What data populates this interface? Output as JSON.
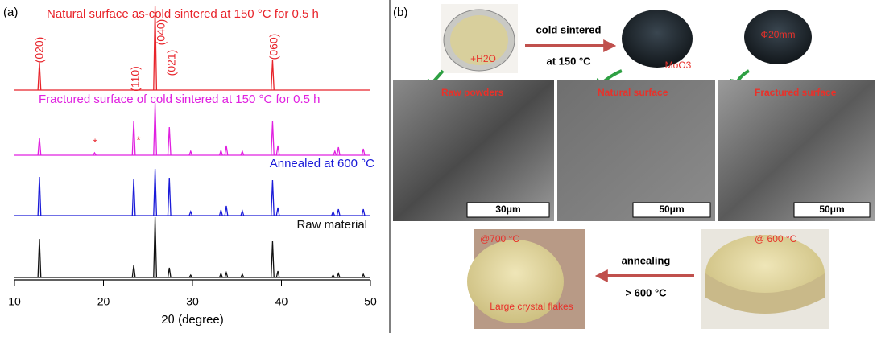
{
  "chart_data": {
    "type": "line",
    "panel_label": "(a)",
    "xlabel": "2θ (degree)",
    "xlim": [
      10,
      50
    ],
    "xticks": [
      10,
      20,
      30,
      40,
      50
    ],
    "series": [
      {
        "name": "Natural surface as-cold sintered at 150 °C for 0.5 h",
        "color": "#e8232a",
        "x": [
          12.8,
          25.8,
          39.0
        ],
        "values": [
          33,
          100,
          36
        ]
      },
      {
        "name": "Fractured surface of cold sintered at 150 °C for 0.5 h",
        "color": "#e020e0",
        "x": [
          12.8,
          19.0,
          23.4,
          25.8,
          27.4,
          29.8,
          33.2,
          33.8,
          35.6,
          39.0,
          39.6,
          46.0,
          46.4,
          49.2
        ],
        "values": [
          22,
          3,
          42,
          65,
          35,
          5,
          6,
          12,
          5,
          42,
          12,
          5,
          10,
          8
        ]
      },
      {
        "name": "Annealed at 600 °C",
        "color": "#1a1ad8",
        "x": [
          12.8,
          23.4,
          25.8,
          27.4,
          29.8,
          33.2,
          33.8,
          35.6,
          39.0,
          39.6,
          45.8,
          46.4,
          49.2
        ],
        "values": [
          48,
          45,
          58,
          47,
          5,
          7,
          12,
          6,
          44,
          10,
          5,
          8,
          8
        ]
      },
      {
        "name": "Raw material",
        "color": "#111111",
        "x": [
          12.8,
          23.4,
          25.8,
          27.4,
          29.8,
          33.2,
          33.8,
          35.6,
          39.0,
          39.6,
          45.8,
          46.4,
          49.2
        ],
        "values": [
          48,
          15,
          75,
          12,
          3,
          5,
          6,
          4,
          45,
          8,
          3,
          5,
          4
        ]
      }
    ],
    "annotations": [
      "(020)",
      "(110)",
      "(040)",
      "(021)",
      "(060)",
      "*",
      "*"
    ]
  },
  "panel_b": {
    "label": "(b)",
    "photos": [
      "+H2O",
      "MoO3",
      "Φ20mm"
    ],
    "top_arrow": [
      "cold sintered",
      "at 150 °C"
    ],
    "sem": [
      {
        "label": "Raw powders",
        "scale": "30μm"
      },
      {
        "label": "Natural surface",
        "scale": "50μm"
      },
      {
        "label": "Fractured surface",
        "scale": "50μm"
      }
    ],
    "bottom_photos": [
      {
        "label": "@700 °C",
        "note": "Large crystal flakes"
      },
      {
        "label": "@ 600 °C"
      }
    ],
    "bottom_arrow": [
      "annealing",
      "> 600 °C"
    ]
  }
}
